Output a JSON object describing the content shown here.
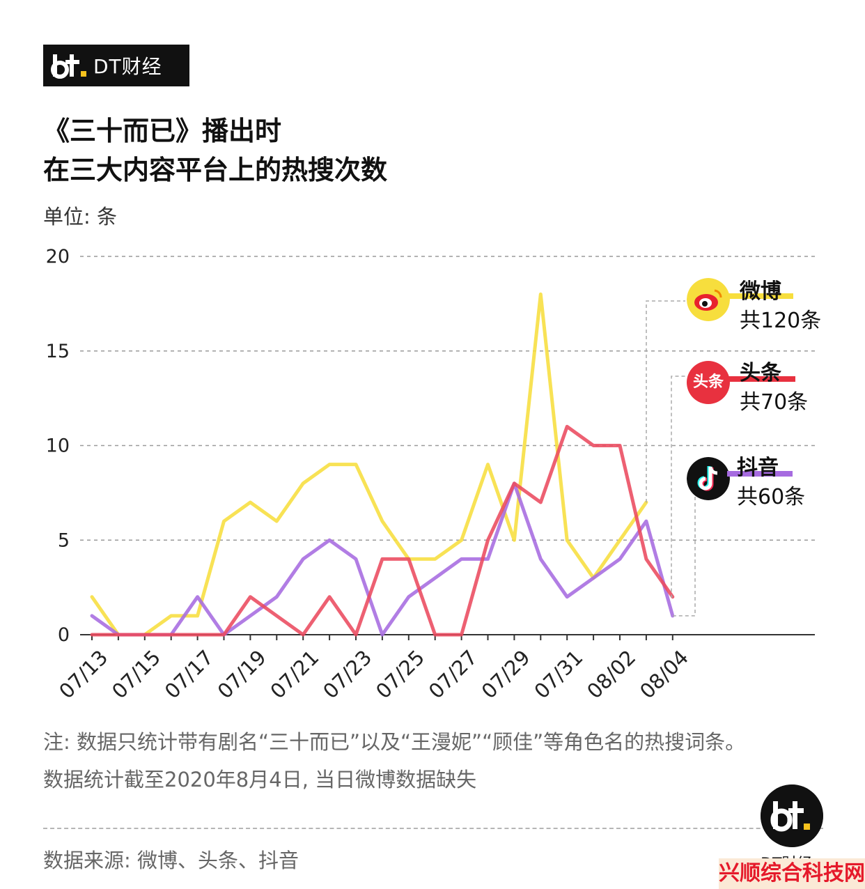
{
  "brand": {
    "name": "DT财经",
    "logo_icon": "dt-logo-icon"
  },
  "title": {
    "line1": "《三十而已》播出时",
    "line2": "在三大内容平台上的热搜次数"
  },
  "unit": "单位: 条",
  "chart_data": {
    "type": "line",
    "title": "《三十而已》播出时 在三大内容平台上的热搜次数",
    "ylabel": "单位: 条",
    "xlabel": "",
    "ylim": [
      0,
      20
    ],
    "yticks": [
      "0",
      "5",
      "10",
      "15",
      "20"
    ],
    "grid": true,
    "legend_position": "right",
    "x": [
      "07/13",
      "07/14",
      "07/15",
      "07/16",
      "07/17",
      "07/18",
      "07/19",
      "07/20",
      "07/21",
      "07/22",
      "07/23",
      "07/24",
      "07/25",
      "07/26",
      "07/27",
      "07/28",
      "07/29",
      "07/30",
      "07/31",
      "08/01",
      "08/02",
      "08/03",
      "08/04"
    ],
    "xtick_labels": [
      "07/13",
      "07/15",
      "07/17",
      "07/19",
      "07/21",
      "07/23",
      "07/25",
      "07/27",
      "07/29",
      "07/31",
      "08/02",
      "08/04"
    ],
    "series": [
      {
        "name": "微博",
        "total": "共120条",
        "color": "#f7de3d",
        "icon": "weibo-logo-icon",
        "values": [
          2,
          0,
          0,
          1,
          1,
          6,
          7,
          6,
          8,
          9,
          9,
          6,
          4,
          4,
          5,
          9,
          5,
          18,
          5,
          3,
          5,
          7,
          null
        ]
      },
      {
        "name": "头条",
        "total": "共70条",
        "color": "#ea4a5e",
        "icon": "toutiao-logo-icon",
        "logo_text": "头条",
        "values": [
          0,
          0,
          0,
          0,
          0,
          0,
          2,
          1,
          0,
          2,
          0,
          4,
          4,
          0,
          0,
          5,
          8,
          7,
          11,
          10,
          10,
          4,
          2
        ]
      },
      {
        "name": "抖音",
        "total": "共60条",
        "color": "#a66be0",
        "icon": "douyin-logo-icon",
        "values": [
          1,
          0,
          0,
          0,
          2,
          0,
          1,
          2,
          4,
          5,
          4,
          0,
          2,
          3,
          4,
          4,
          8,
          4,
          2,
          3,
          4,
          6,
          1
        ]
      }
    ]
  },
  "note": {
    "line1": "注: 数据只统计带有剧名“三十而已”以及“王漫妮”“顾佳”等角色名的热搜词条。",
    "line2": "数据统计截至2020年8月4日, 当日微博数据缺失"
  },
  "source": "数据来源: 微博、头条、抖音",
  "footer_brand": "DT财经",
  "corner_stamp": "兴顺综合科技网"
}
